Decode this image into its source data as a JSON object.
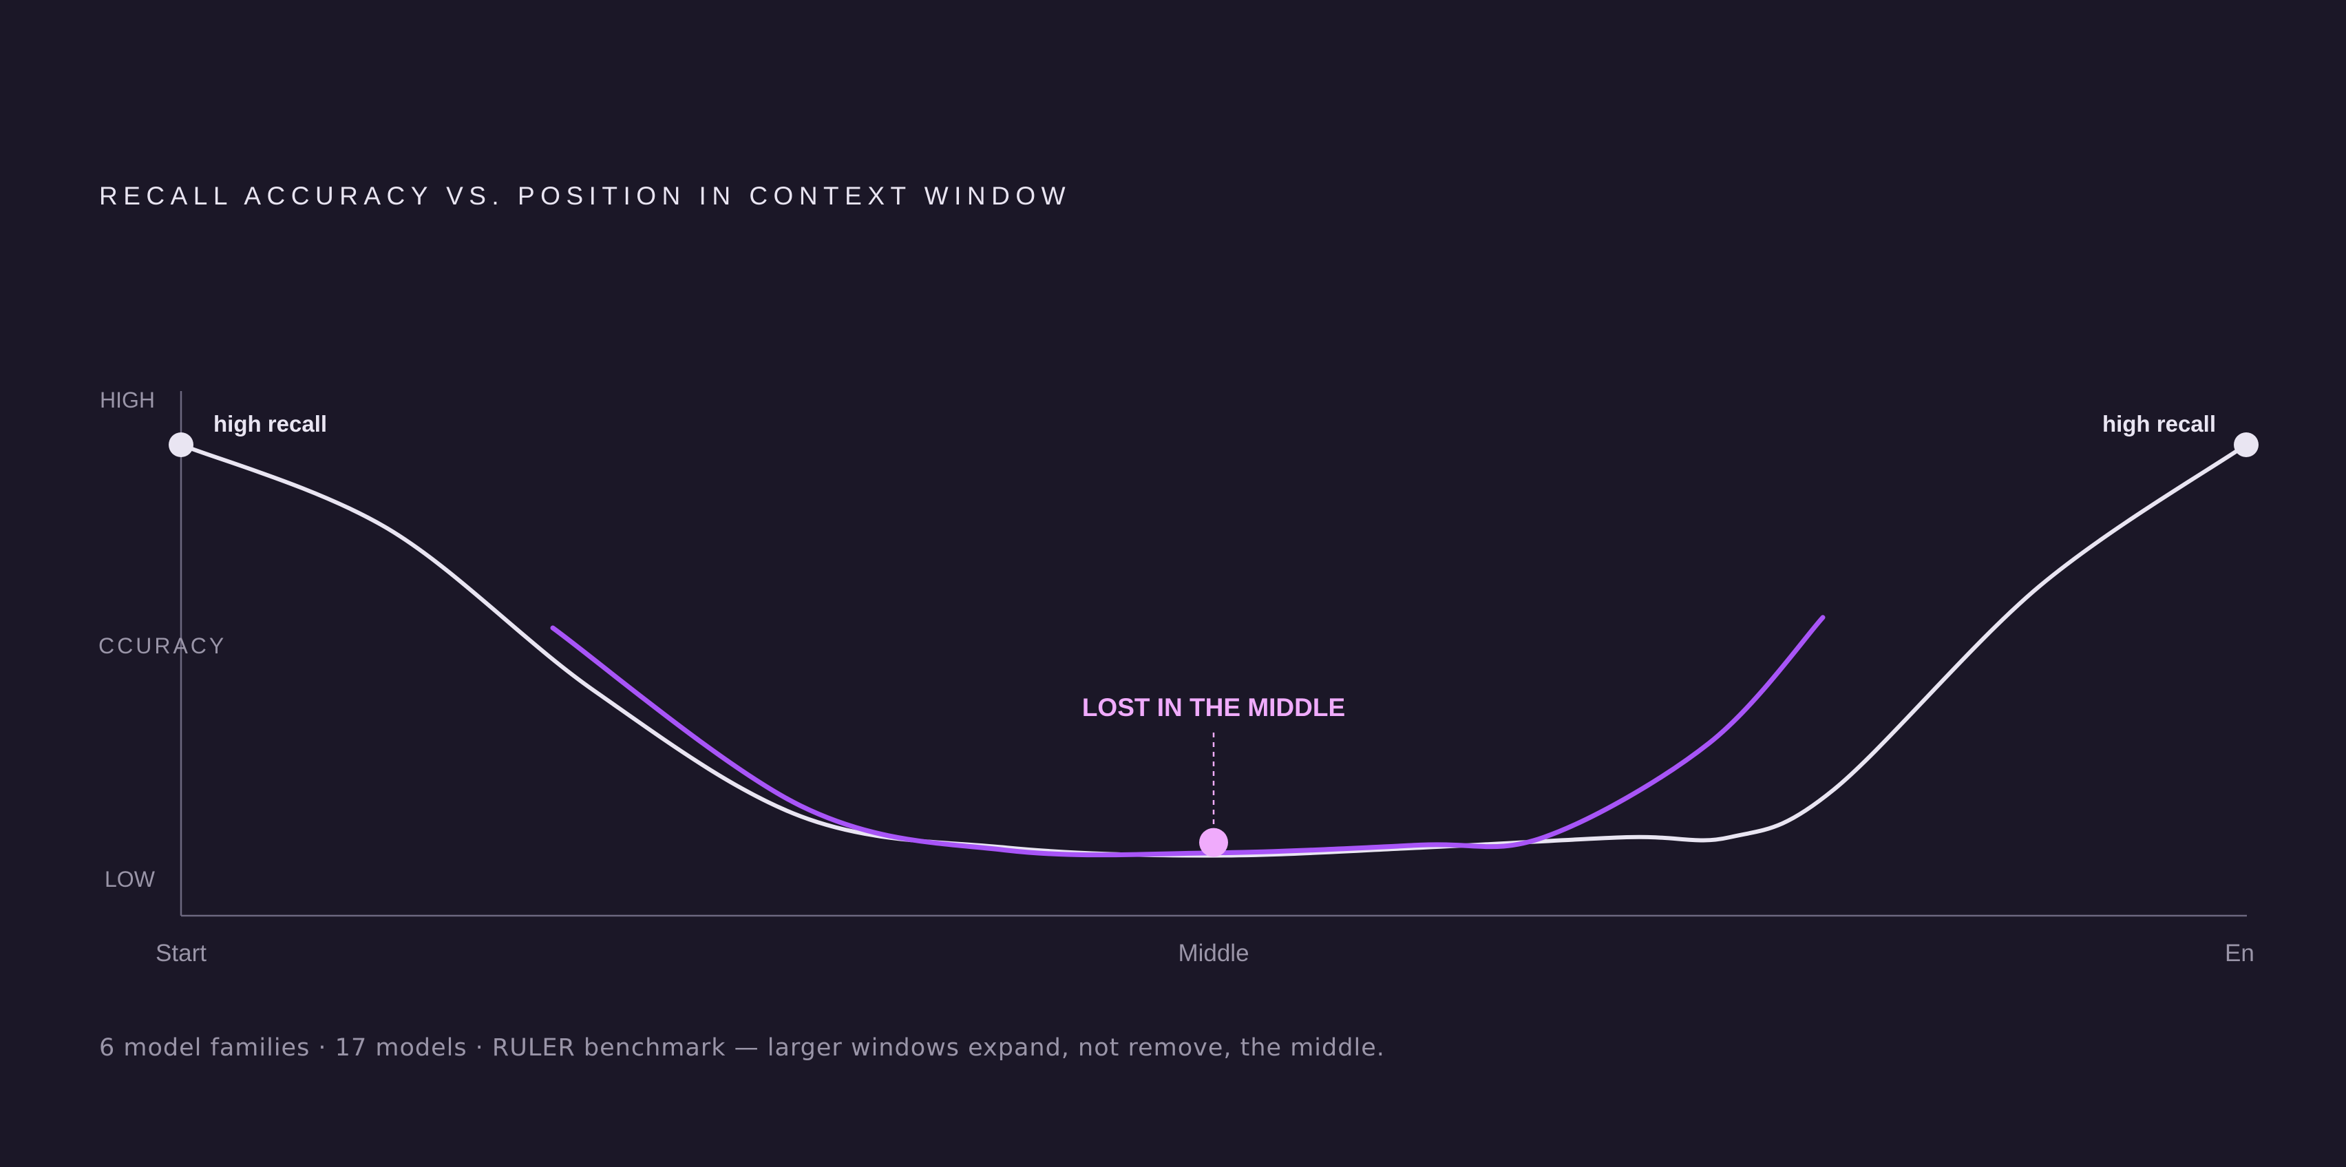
{
  "title": "RECALL ACCURACY VS. POSITION IN CONTEXT WINDOW",
  "footnote": "6 model families · 17 models · RULER benchmark — larger windows expand, not remove, the middle.",
  "colors": {
    "background": "#1b1727",
    "baseline_curve": "#e9e5f2",
    "highlight_curve": "#a855f7",
    "callout": "#f0abfc",
    "axis": "#6d6880",
    "muted_text": "#9a95a8"
  },
  "chart_data": {
    "type": "line",
    "title": "RECALL ACCURACY VS. POSITION IN CONTEXT WINDOW",
    "ylabel": "CCURACY",
    "y_tick_labels": [
      "HIGH",
      "LOW"
    ],
    "x_tick_labels": [
      "Start",
      "Middle",
      "En"
    ],
    "xlim": [
      0,
      1
    ],
    "ylim": [
      0,
      1
    ],
    "grid": false,
    "legend": "none",
    "series": [
      {
        "color": "#e9e5f2",
        "x": [
          0,
          0.1,
          0.2,
          0.3,
          0.4,
          0.5,
          0.6,
          0.7,
          0.75,
          0.8,
          0.9,
          1.0
        ],
        "y": [
          0.9,
          0.74,
          0.43,
          0.19,
          0.13,
          0.115,
          0.13,
          0.15,
          0.15,
          0.24,
          0.63,
          0.9
        ]
      },
      {
        "color": "#a855f7",
        "x": [
          0.18,
          0.3,
          0.4,
          0.5,
          0.6,
          0.66,
          0.74,
          0.795
        ],
        "y": [
          0.55,
          0.21,
          0.125,
          0.12,
          0.135,
          0.15,
          0.33,
          0.57
        ]
      }
    ],
    "annotations": [
      {
        "text": "high recall",
        "x": 0,
        "y": 0.9
      },
      {
        "text": "high recall",
        "x": 1.0,
        "y": 0.9
      },
      {
        "text": "LOST IN THE MIDDLE",
        "x": 0.5,
        "y": 0.14
      }
    ]
  }
}
